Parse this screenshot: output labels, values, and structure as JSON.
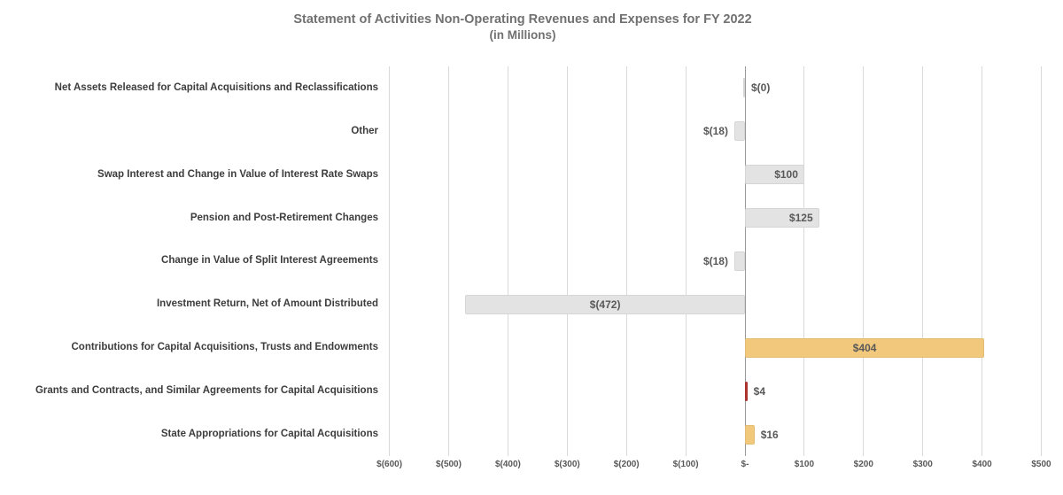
{
  "chart_data": {
    "type": "bar",
    "orientation": "horizontal",
    "title": "Statement of Activities Non-Operating Revenues and Expenses for FY 2022",
    "subtitle": "(in Millions)",
    "categories": [
      "Net Assets Released for Capital Acquisitions and Reclassifications",
      "Other",
      "Swap Interest and Change in Value of Interest Rate Swaps",
      "Pension and Post-Retirement Changes",
      "Change in Value of Split Interest Agreements",
      "Investment Return, Net of Amount Distributed",
      "Contributions for Capital Acquisitions, Trusts and Endowments",
      "Grants and Contracts, and Similar Agreements for Capital Acquisitions",
      "State Appropriations for Capital Acquisitions"
    ],
    "values": [
      0,
      -18,
      100,
      125,
      -18,
      -472,
      404,
      4,
      16
    ],
    "value_labels": [
      "$(0)",
      "$(18)",
      "$100",
      "$125",
      "$(18)",
      "$(472)",
      "$404",
      "$4",
      "$16"
    ],
    "bar_colors": [
      "gray",
      "gray",
      "gray",
      "gray",
      "gray",
      "gray",
      "orange",
      "red",
      "orange"
    ],
    "label_positions": [
      "outside-right",
      "outside-left",
      "inside-end",
      "inside-end",
      "outside-left",
      "center",
      "center",
      "outside-right",
      "outside-right"
    ],
    "colors": {
      "gray": "#e3e3e3",
      "orange": "#f2c87c",
      "red": "#b23530",
      "title_text": "#717171",
      "category_text": "#3d3d3d",
      "value_text": "#595959",
      "gridline": "#d9d9d9",
      "zero_line": "#999999"
    },
    "xlim": [
      -600,
      500
    ],
    "x_ticks": [
      -600,
      -500,
      -400,
      -300,
      -200,
      -100,
      0,
      100,
      200,
      300,
      400,
      500
    ],
    "x_tick_labels": [
      "$(600)",
      "$(500)",
      "$(400)",
      "$(300)",
      "$(200)",
      "$(100)",
      "$-",
      "$100",
      "$200",
      "$300",
      "$400",
      "$500"
    ],
    "grid": "vertical-only",
    "legend": "none"
  }
}
